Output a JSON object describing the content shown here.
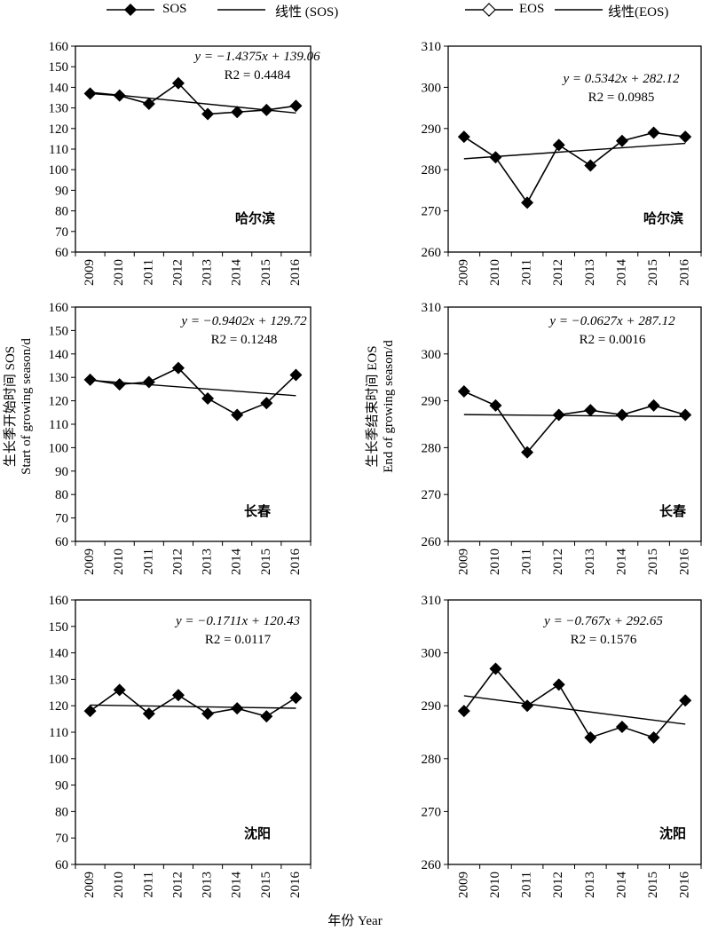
{
  "legend": {
    "sos_marker": "SOS",
    "sos_line": "线性 (SOS)",
    "eos_marker": "EOS",
    "eos_line": "线性(EOS)"
  },
  "axis_titles": {
    "left_y_cn": "生长季开始时间 SOS",
    "left_y_en": "Start of growing season/d",
    "right_y_cn": "生长季结束时间 EOS",
    "right_y_en": "End of growing season/d",
    "x": "年份 Year"
  },
  "chart_data": [
    {
      "type": "line",
      "city": "哈尔滨",
      "series": [
        {
          "name": "SOS",
          "values": [
            137,
            136,
            132,
            142,
            127,
            128,
            129,
            131
          ]
        }
      ],
      "trend": {
        "name": "线性 (SOS)",
        "slope": -1.4375,
        "intercept": 139.06
      },
      "equation": "y = −1.4375x + 139.06",
      "r2": "R2 = 0.4484",
      "x": [
        "2009",
        "2010",
        "2011",
        "2012",
        "2013",
        "2014",
        "2015",
        "2016"
      ],
      "ylim": [
        60,
        160
      ],
      "yticks": [
        60,
        70,
        80,
        90,
        100,
        110,
        120,
        130,
        140,
        150,
        160
      ],
      "marker": "filled"
    },
    {
      "type": "line",
      "city": "哈尔滨",
      "series": [
        {
          "name": "EOS",
          "values": [
            288,
            283,
            272,
            286,
            281,
            287,
            289,
            288
          ]
        }
      ],
      "trend": {
        "name": "线性(EOS)",
        "slope": 0.5342,
        "intercept": 282.12
      },
      "equation": "y = 0.5342x + 282.12",
      "r2": "R2 = 0.0985",
      "x": [
        "2009",
        "2010",
        "2011",
        "2012",
        "2013",
        "2014",
        "2015",
        "2016"
      ],
      "ylim": [
        260,
        310
      ],
      "yticks": [
        260,
        270,
        280,
        290,
        300,
        310
      ],
      "marker": "filled"
    },
    {
      "type": "line",
      "city": "长春",
      "series": [
        {
          "name": "SOS",
          "values": [
            129,
            127,
            128,
            134,
            121,
            114,
            119,
            131
          ]
        }
      ],
      "trend": {
        "name": "线性 (SOS)",
        "slope": -0.9402,
        "intercept": 129.72
      },
      "equation": "y = −0.9402x + 129.72",
      "r2": "R2 = 0.1248",
      "x": [
        "2009",
        "2010",
        "2011",
        "2012",
        "2013",
        "2014",
        "2015",
        "2016"
      ],
      "ylim": [
        60,
        160
      ],
      "yticks": [
        60,
        70,
        80,
        90,
        100,
        110,
        120,
        130,
        140,
        150,
        160
      ],
      "marker": "filled"
    },
    {
      "type": "line",
      "city": "长春",
      "series": [
        {
          "name": "EOS",
          "values": [
            292,
            289,
            279,
            287,
            288,
            287,
            289,
            287
          ]
        }
      ],
      "trend": {
        "name": "线性(EOS)",
        "slope": -0.0627,
        "intercept": 287.12
      },
      "equation": "y = −0.0627x + 287.12",
      "r2": "R2 = 0.0016",
      "x": [
        "2009",
        "2010",
        "2011",
        "2012",
        "2013",
        "2014",
        "2015",
        "2016"
      ],
      "ylim": [
        260,
        310
      ],
      "yticks": [
        260,
        270,
        280,
        290,
        300,
        310
      ],
      "marker": "filled"
    },
    {
      "type": "line",
      "city": "沈阳",
      "series": [
        {
          "name": "SOS",
          "values": [
            118,
            126,
            117,
            124,
            117,
            119,
            116,
            123
          ]
        }
      ],
      "trend": {
        "name": "线性 (SOS)",
        "slope": -0.1711,
        "intercept": 120.43
      },
      "equation": "y = −0.1711x + 120.43",
      "r2": "R2 = 0.0117",
      "x": [
        "2009",
        "2010",
        "2011",
        "2012",
        "2013",
        "2014",
        "2015",
        "2016"
      ],
      "ylim": [
        60,
        160
      ],
      "yticks": [
        60,
        70,
        80,
        90,
        100,
        110,
        120,
        130,
        140,
        150,
        160
      ],
      "marker": "filled"
    },
    {
      "type": "line",
      "city": "沈阳",
      "series": [
        {
          "name": "EOS",
          "values": [
            289,
            297,
            290,
            294,
            284,
            286,
            284,
            291
          ]
        }
      ],
      "trend": {
        "name": "线性(EOS)",
        "slope": -0.767,
        "intercept": 292.65
      },
      "equation": "y = −0.767x + 292.65",
      "r2": "R2 = 0.1576",
      "x": [
        "2009",
        "2010",
        "2011",
        "2012",
        "2013",
        "2014",
        "2015",
        "2016"
      ],
      "ylim": [
        260,
        310
      ],
      "yticks": [
        260,
        270,
        280,
        290,
        300,
        310
      ],
      "marker": "filled"
    }
  ]
}
